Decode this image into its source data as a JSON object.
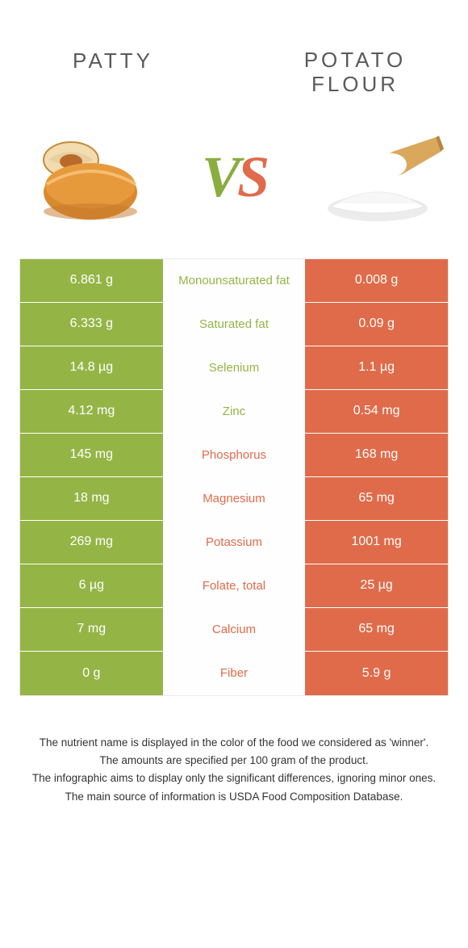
{
  "colors": {
    "green": "#94b546",
    "orange": "#e06b4a",
    "mid_bg": "#fefefe",
    "border": "#e9e9e9",
    "text_gray": "#5a5a5a"
  },
  "header": {
    "left_title": "PATTY",
    "right_title": "POTATO FLOUR",
    "vs_v": "V",
    "vs_s": "S"
  },
  "rows": [
    {
      "left": "6.861 g",
      "mid": "Monounsaturated fat",
      "right": "0.008 g",
      "winner": "left"
    },
    {
      "left": "6.333 g",
      "mid": "Saturated fat",
      "right": "0.09 g",
      "winner": "left"
    },
    {
      "left": "14.8 µg",
      "mid": "Selenium",
      "right": "1.1 µg",
      "winner": "left"
    },
    {
      "left": "4.12 mg",
      "mid": "Zinc",
      "right": "0.54 mg",
      "winner": "left"
    },
    {
      "left": "145 mg",
      "mid": "Phosphorus",
      "right": "168 mg",
      "winner": "right"
    },
    {
      "left": "18 mg",
      "mid": "Magnesium",
      "right": "65 mg",
      "winner": "right"
    },
    {
      "left": "269 mg",
      "mid": "Potassium",
      "right": "1001 mg",
      "winner": "right"
    },
    {
      "left": "6 µg",
      "mid": "Folate, total",
      "right": "25 µg",
      "winner": "right"
    },
    {
      "left": "7 mg",
      "mid": "Calcium",
      "right": "65 mg",
      "winner": "right"
    },
    {
      "left": "0 g",
      "mid": "Fiber",
      "right": "5.9 g",
      "winner": "right"
    }
  ],
  "footnotes": [
    "The nutrient name is displayed in the color of the food we considered as 'winner'.",
    "The amounts are specified per 100 gram of the product.",
    "The infographic aims to display only the significant differences, ignoring minor ones.",
    "The main source of information is USDA Food Composition Database."
  ]
}
